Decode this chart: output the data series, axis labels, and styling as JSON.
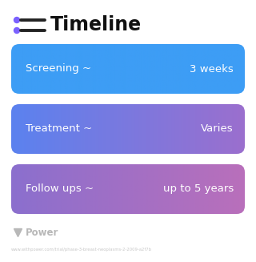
{
  "title": "Timeline",
  "title_icon_color": "#7b61ff",
  "background_color": "#ffffff",
  "rows": [
    {
      "label": "Screening ~",
      "value": "3 weeks",
      "color_left": "#3d9df5",
      "color_right": "#3d9df5"
    },
    {
      "label": "Treatment ~",
      "value": "Varies",
      "color_left": "#5b82ef",
      "color_right": "#9b6fce"
    },
    {
      "label": "Follow ups ~",
      "value": "up to 5 years",
      "color_left": "#8b6fce",
      "color_right": "#b96fbb"
    }
  ],
  "watermark_text": "Power",
  "watermark_color": "#b8b8b8",
  "url_text": "www.withpower.com/trial/phase-3-breast-neoplasms-2-2009-a2f7b",
  "url_color": "#c8c8c8",
  "label_fontsize": 9.5,
  "value_fontsize": 9.5,
  "title_fontsize": 17,
  "icon_color": "#7b61ff"
}
